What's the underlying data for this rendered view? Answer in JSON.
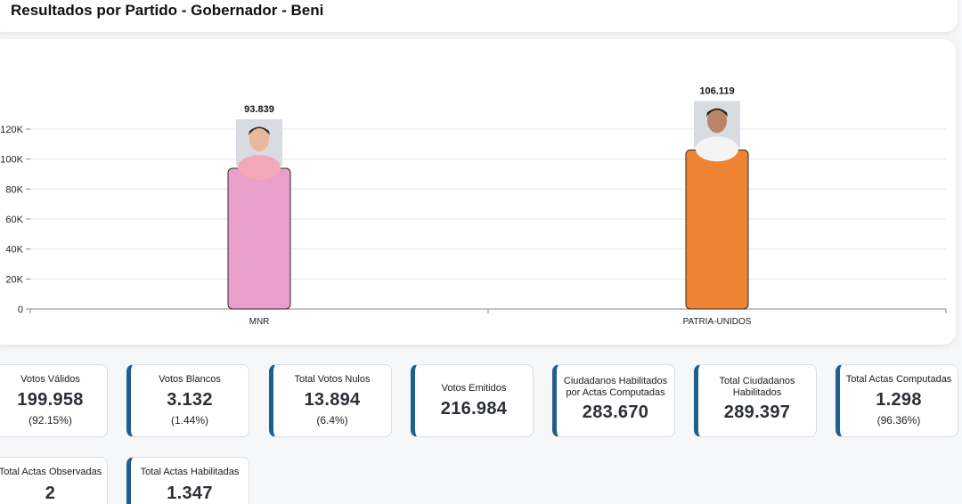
{
  "header": {
    "title": "Resultados por Partido - Gobernador - Beni"
  },
  "chart_data": {
    "type": "bar",
    "categories": [
      "MNR",
      "PATRIA-UNIDOS"
    ],
    "values": [
      93839,
      106119
    ],
    "value_labels": [
      "93.839",
      "106.119"
    ],
    "colors": [
      "#e89fca",
      "#ee8431"
    ],
    "title": "",
    "xlabel": "",
    "ylabel": "",
    "ylim": [
      0,
      120000
    ],
    "yticks": [
      0,
      20000,
      40000,
      60000,
      80000,
      100000,
      120000
    ],
    "ytick_labels": [
      "0",
      "20K",
      "40K",
      "60K",
      "80K",
      "100K",
      "120K"
    ],
    "grid": true,
    "legend": "none"
  },
  "stats": [
    {
      "label": "Votos Válidos",
      "value": "199.958",
      "pct": "(92.15%)"
    },
    {
      "label": "Votos Blancos",
      "value": "3.132",
      "pct": "(1.44%)"
    },
    {
      "label": "Total Votos Nulos",
      "value": "13.894",
      "pct": "(6.4%)"
    },
    {
      "label": "Votos Emitidos",
      "value": "216.984"
    },
    {
      "label": "Ciudadanos Habilitados por Actas Computadas",
      "value": "283.670"
    },
    {
      "label": "Total Ciudadanos Habilitados",
      "value": "289.397"
    },
    {
      "label": "Total Actas Computadas",
      "value": "1.298",
      "pct": "(96.36%)"
    },
    {
      "label": "Total Actas Observadas",
      "value": "2"
    },
    {
      "label": "Total Actas Habilitadas",
      "value": "1.347"
    }
  ]
}
